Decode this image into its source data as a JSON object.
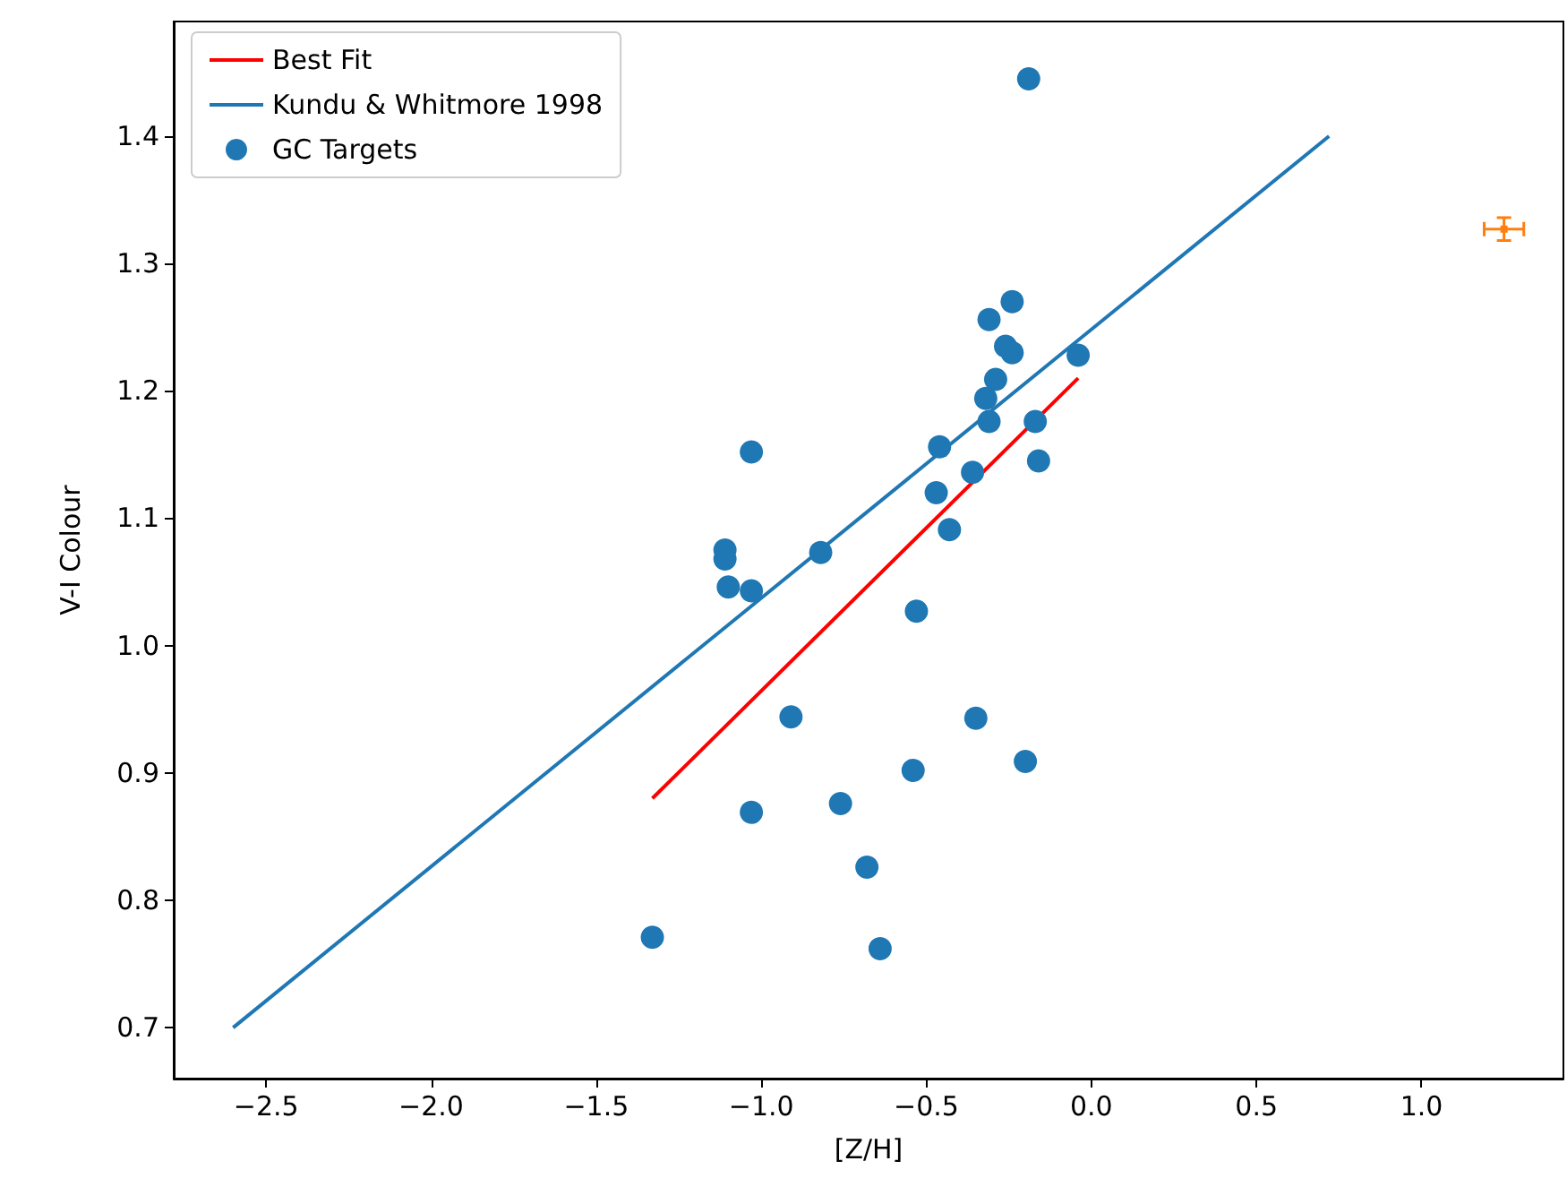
{
  "chart_data": {
    "type": "scatter",
    "xlabel": "[Z/H]",
    "ylabel": "V-I Colour",
    "xlim": [
      -2.78,
      1.43
    ],
    "ylim": [
      0.66,
      1.49
    ],
    "xticks": [
      {
        "value": -2.5,
        "label": "−2.5"
      },
      {
        "value": -2.0,
        "label": "−2.0"
      },
      {
        "value": -1.5,
        "label": "−1.5"
      },
      {
        "value": -1.0,
        "label": "−1.0"
      },
      {
        "value": -0.5,
        "label": "−0.5"
      },
      {
        "value": 0,
        "label": "0.0"
      },
      {
        "value": 0.5,
        "label": "0.5"
      },
      {
        "value": 1.0,
        "label": "1.0"
      }
    ],
    "yticks": [
      {
        "value": 0.7,
        "label": "0.7"
      },
      {
        "value": 0.8,
        "label": "0.8"
      },
      {
        "value": 0.9,
        "label": "0.9"
      },
      {
        "value": 1.0,
        "label": "1.0"
      },
      {
        "value": 1.1,
        "label": "1.1"
      },
      {
        "value": 1.2,
        "label": "1.2"
      },
      {
        "value": 1.3,
        "label": "1.3"
      },
      {
        "value": 1.4,
        "label": "1.4"
      }
    ],
    "grid": false,
    "legend": "top left",
    "marker": "circle",
    "series": [
      {
        "name": "Best Fit",
        "type": "line",
        "color": "#ff0000",
        "marker": "none",
        "x": [
          -1.33,
          -0.04
        ],
        "values": [
          0.88,
          1.21
        ]
      },
      {
        "name": "Kundu & Whitmore 1998",
        "type": "line",
        "color": "#1f77b4",
        "marker": "none",
        "x": [
          -2.6,
          0.72
        ],
        "values": [
          0.7,
          1.4
        ]
      },
      {
        "name": "GC Targets",
        "type": "scatter",
        "color": "#1f77b4",
        "x": [
          -0.19,
          -0.24,
          -0.31,
          -0.04,
          -0.26,
          -0.24,
          -0.29,
          -0.32,
          -0.31,
          -0.17,
          -0.16,
          -1.03,
          -0.46,
          -0.47,
          -0.36,
          -0.43,
          -1.11,
          -1.11,
          -1.1,
          -1.03,
          -0.82,
          -0.53,
          -0.91,
          -0.35,
          -0.54,
          -0.2,
          -0.76,
          -1.03,
          -0.68,
          -0.64,
          -1.33
        ],
        "values": [
          1.445,
          1.27,
          1.256,
          1.228,
          1.235,
          1.23,
          1.209,
          1.194,
          1.176,
          1.176,
          1.145,
          1.152,
          1.156,
          1.12,
          1.136,
          1.091,
          1.075,
          1.068,
          1.046,
          1.043,
          1.073,
          1.027,
          0.944,
          0.943,
          0.902,
          0.909,
          0.876,
          0.869,
          0.826,
          0.762,
          0.771
        ]
      },
      {
        "type": "scatter",
        "color": "#ff7f0e",
        "marker": "square",
        "x": [
          1.25
        ],
        "values": [
          1.327
        ],
        "errors": [
          0.009
        ],
        "xerrors": [
          0.06
        ]
      }
    ]
  }
}
